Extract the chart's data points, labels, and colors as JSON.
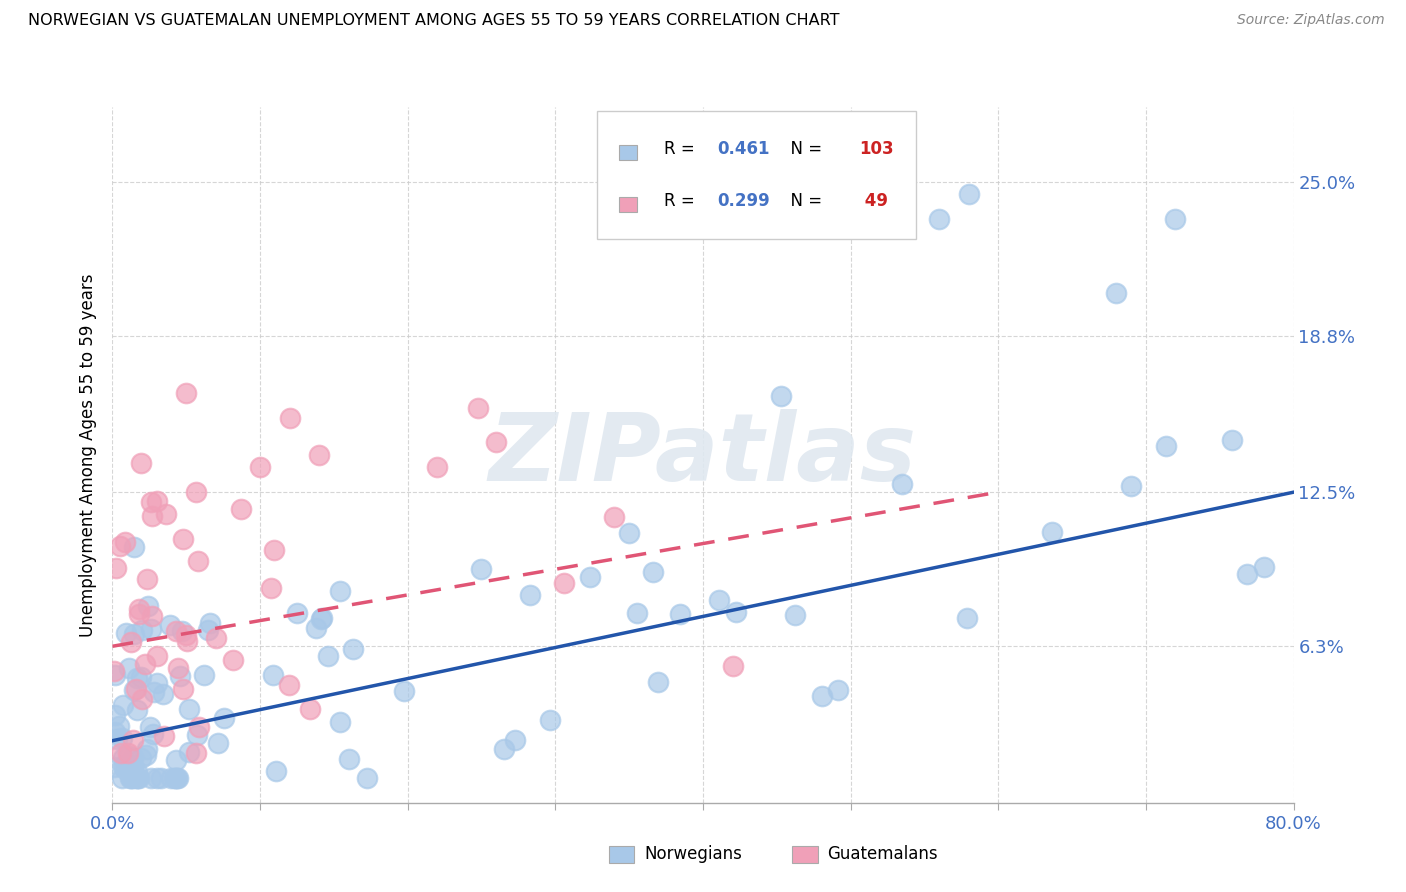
{
  "title": "NORWEGIAN VS GUATEMALAN UNEMPLOYMENT AMONG AGES 55 TO 59 YEARS CORRELATION CHART",
  "source": "Source: ZipAtlas.com",
  "ylabel": "Unemployment Among Ages 55 to 59 years",
  "xlim": [
    0.0,
    0.8
  ],
  "ylim": [
    0.0,
    0.28
  ],
  "ytick_vals": [
    0.063,
    0.125,
    0.188,
    0.25
  ],
  "ytick_labels": [
    "6.3%",
    "12.5%",
    "18.8%",
    "25.0%"
  ],
  "norwegian_color": "#a8c8e8",
  "guatemalan_color": "#f0a0b8",
  "norwegian_line_color": "#2255aa",
  "guatemalan_line_color": "#e05575",
  "R_norwegian": 0.461,
  "N_norwegian": 103,
  "R_guatemalan": 0.299,
  "N_guatemalan": 49,
  "nor_line_x0": 0.0,
  "nor_line_y0": 0.025,
  "nor_line_x1": 0.8,
  "nor_line_y1": 0.125,
  "gua_line_x0": 0.0,
  "gua_line_y0": 0.063,
  "gua_line_x1": 0.6,
  "gua_line_y1": 0.125,
  "background_color": "#ffffff",
  "grid_color": "#cccccc",
  "text_color": "#4472c4",
  "n_color": "#cc2222"
}
